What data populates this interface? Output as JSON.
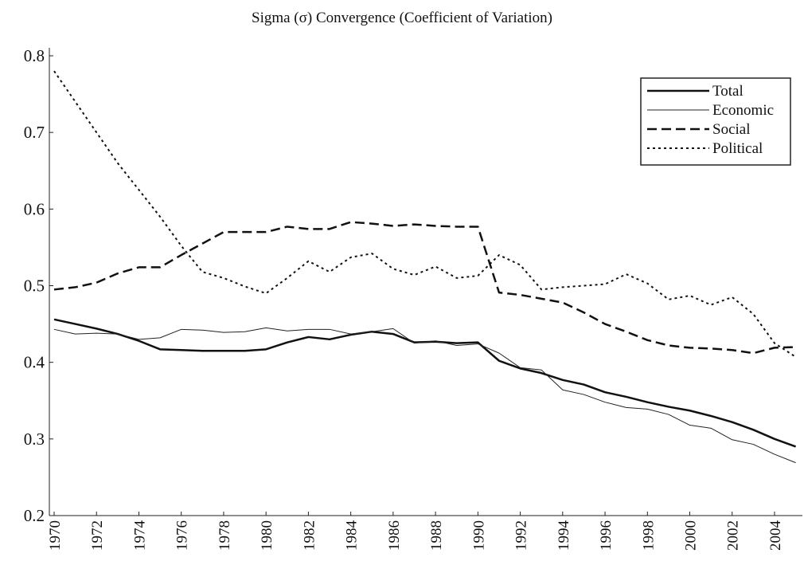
{
  "chart_data": {
    "type": "line",
    "title": "Sigma (σ) Convergence (Coefficient of Variation)",
    "x": [
      1970,
      1971,
      1972,
      1973,
      1974,
      1975,
      1976,
      1977,
      1978,
      1979,
      1980,
      1981,
      1982,
      1983,
      1984,
      1985,
      1986,
      1987,
      1988,
      1989,
      1990,
      1991,
      1992,
      1993,
      1994,
      1995,
      1996,
      1997,
      1998,
      1999,
      2000,
      2001,
      2002,
      2003,
      2004,
      2005
    ],
    "xlim": [
      1970,
      2005
    ],
    "xticks": [
      1970,
      1972,
      1974,
      1976,
      1978,
      1980,
      1982,
      1984,
      1986,
      1988,
      1990,
      1992,
      1994,
      1996,
      1998,
      2000,
      2002,
      2004
    ],
    "ylim": [
      0.2,
      0.8
    ],
    "yticks": [
      0.2,
      0.3,
      0.4,
      0.5,
      0.6,
      0.7,
      0.8
    ],
    "legend": "upper right",
    "series": [
      {
        "name": "Total",
        "color": "#111111",
        "linestyle": "solid",
        "linewidth": 2.5,
        "values": [
          0.456,
          0.45,
          0.444,
          0.437,
          0.428,
          0.417,
          0.416,
          0.415,
          0.415,
          0.415,
          0.417,
          0.426,
          0.433,
          0.43,
          0.436,
          0.44,
          0.437,
          0.426,
          0.427,
          0.425,
          0.426,
          0.402,
          0.392,
          0.386,
          0.377,
          0.371,
          0.361,
          0.355,
          0.348,
          0.342,
          0.337,
          0.33,
          0.322,
          0.312,
          0.3,
          0.29
        ]
      },
      {
        "name": "Economic",
        "color": "#222222",
        "linestyle": "solid",
        "linewidth": 1,
        "values": [
          0.443,
          0.437,
          0.438,
          0.437,
          0.43,
          0.432,
          0.443,
          0.442,
          0.439,
          0.44,
          0.445,
          0.441,
          0.443,
          0.443,
          0.437,
          0.44,
          0.444,
          0.425,
          0.428,
          0.422,
          0.424,
          0.412,
          0.393,
          0.39,
          0.364,
          0.358,
          0.348,
          0.341,
          0.339,
          0.332,
          0.318,
          0.314,
          0.299,
          0.293,
          0.28,
          0.269
        ]
      },
      {
        "name": "Social",
        "color": "#111111",
        "linestyle": "dashed",
        "linewidth": 2.5,
        "values": [
          0.495,
          0.498,
          0.504,
          0.516,
          0.524,
          0.524,
          0.54,
          0.555,
          0.57,
          0.57,
          0.57,
          0.577,
          0.574,
          0.574,
          0.583,
          0.581,
          0.578,
          0.58,
          0.578,
          0.577,
          0.577,
          0.491,
          0.488,
          0.483,
          0.478,
          0.465,
          0.45,
          0.44,
          0.429,
          0.422,
          0.419,
          0.418,
          0.416,
          0.412,
          0.419,
          0.42
        ]
      },
      {
        "name": "Political",
        "color": "#111111",
        "linestyle": "dotted",
        "linewidth": 2,
        "values": [
          0.78,
          0.74,
          0.7,
          0.66,
          0.625,
          0.59,
          0.552,
          0.518,
          0.51,
          0.499,
          0.49,
          0.51,
          0.532,
          0.518,
          0.537,
          0.542,
          0.522,
          0.514,
          0.525,
          0.51,
          0.513,
          0.54,
          0.527,
          0.495,
          0.498,
          0.5,
          0.502,
          0.515,
          0.503,
          0.482,
          0.487,
          0.475,
          0.485,
          0.463,
          0.425,
          0.407
        ]
      }
    ]
  }
}
